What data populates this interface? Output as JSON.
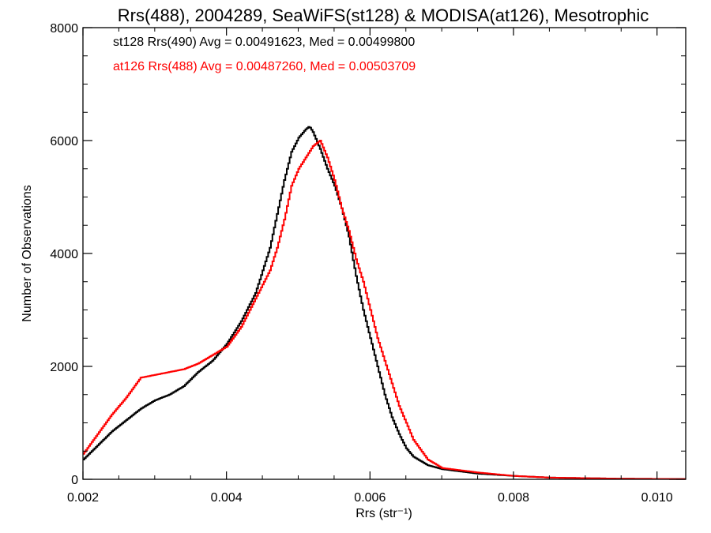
{
  "chart_data": {
    "type": "line",
    "title": "Rrs(488), 2004289, SeaWiFS(st128) & MODISA(at126), Mesotrophic",
    "xlabel": "Rrs (str⁻¹)",
    "ylabel": "Number of Observations",
    "xlim": [
      0.002,
      0.0104
    ],
    "ylim": [
      0,
      8000
    ],
    "x_ticks": [
      "0.002",
      "0.004",
      "0.006",
      "0.008",
      "0.010"
    ],
    "y_ticks": [
      "0",
      "2000",
      "4000",
      "6000",
      "8000"
    ],
    "grid": false,
    "step": true,
    "annotations": [
      {
        "text": "st128 Rrs(490) Avg = 0.00491623, Med = 0.00499800",
        "color": "#000000"
      },
      {
        "text": "at126 Rrs(488) Avg = 0.00487260, Med = 0.00503709",
        "color": "#ff0000"
      }
    ],
    "series": [
      {
        "color": "#000000",
        "points": [
          [
            0.002,
            350
          ],
          [
            0.0022,
            600
          ],
          [
            0.0024,
            850
          ],
          [
            0.0026,
            1050
          ],
          [
            0.0028,
            1250
          ],
          [
            0.003,
            1400
          ],
          [
            0.0032,
            1500
          ],
          [
            0.0034,
            1650
          ],
          [
            0.0036,
            1900
          ],
          [
            0.0038,
            2100
          ],
          [
            0.004,
            2400
          ],
          [
            0.0042,
            2800
          ],
          [
            0.0044,
            3300
          ],
          [
            0.0046,
            4100
          ],
          [
            0.0047,
            4700
          ],
          [
            0.0048,
            5300
          ],
          [
            0.0049,
            5800
          ],
          [
            0.005,
            6050
          ],
          [
            0.0051,
            6200
          ],
          [
            0.00515,
            6250
          ],
          [
            0.0052,
            6150
          ],
          [
            0.0053,
            5850
          ],
          [
            0.0054,
            5500
          ],
          [
            0.0055,
            5200
          ],
          [
            0.0056,
            4800
          ],
          [
            0.0057,
            4300
          ],
          [
            0.0058,
            3600
          ],
          [
            0.0059,
            3000
          ],
          [
            0.006,
            2500
          ],
          [
            0.0061,
            2000
          ],
          [
            0.0062,
            1500
          ],
          [
            0.0063,
            1100
          ],
          [
            0.0064,
            800
          ],
          [
            0.0065,
            550
          ],
          [
            0.0066,
            400
          ],
          [
            0.0068,
            250
          ],
          [
            0.007,
            180
          ],
          [
            0.0075,
            100
          ],
          [
            0.008,
            60
          ],
          [
            0.0085,
            30
          ],
          [
            0.009,
            20
          ],
          [
            0.0095,
            10
          ],
          [
            0.0104,
            5
          ]
        ]
      },
      {
        "color": "#ff0000",
        "points": [
          [
            0.002,
            450
          ],
          [
            0.0022,
            800
          ],
          [
            0.0024,
            1150
          ],
          [
            0.0026,
            1450
          ],
          [
            0.0028,
            1800
          ],
          [
            0.003,
            1850
          ],
          [
            0.0032,
            1900
          ],
          [
            0.0034,
            1950
          ],
          [
            0.0036,
            2050
          ],
          [
            0.0038,
            2200
          ],
          [
            0.004,
            2350
          ],
          [
            0.0042,
            2700
          ],
          [
            0.0044,
            3200
          ],
          [
            0.0046,
            3700
          ],
          [
            0.0047,
            4100
          ],
          [
            0.0048,
            4600
          ],
          [
            0.0049,
            5200
          ],
          [
            0.005,
            5500
          ],
          [
            0.0051,
            5700
          ],
          [
            0.0052,
            5900
          ],
          [
            0.0053,
            6000
          ],
          [
            0.0054,
            5700
          ],
          [
            0.0055,
            5300
          ],
          [
            0.0056,
            4800
          ],
          [
            0.0057,
            4400
          ],
          [
            0.0058,
            3900
          ],
          [
            0.0059,
            3500
          ],
          [
            0.006,
            3000
          ],
          [
            0.0061,
            2500
          ],
          [
            0.0062,
            2100
          ],
          [
            0.0063,
            1700
          ],
          [
            0.0064,
            1300
          ],
          [
            0.0065,
            1000
          ],
          [
            0.0066,
            700
          ],
          [
            0.0068,
            350
          ],
          [
            0.007,
            200
          ],
          [
            0.0075,
            120
          ],
          [
            0.008,
            60
          ],
          [
            0.0085,
            30
          ],
          [
            0.009,
            20
          ],
          [
            0.0095,
            10
          ],
          [
            0.0104,
            5
          ]
        ]
      }
    ]
  }
}
